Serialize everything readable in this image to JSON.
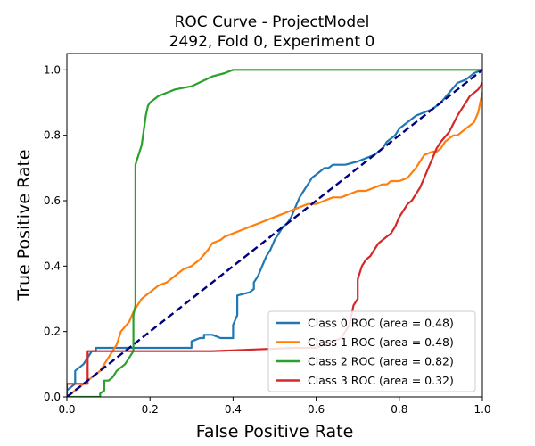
{
  "chart_data": {
    "type": "line",
    "title": [
      "ROC Curve - ProjectModel",
      "2492, Fold 0, Experiment 0"
    ],
    "xlabel": "False Positive Rate",
    "ylabel": "True Positive Rate",
    "xlim": [
      0.0,
      1.0
    ],
    "ylim": [
      0.0,
      1.05
    ],
    "xticks": [
      "0.0",
      "0.2",
      "0.4",
      "0.6",
      "0.8",
      "1.0"
    ],
    "yticks": [
      "0.0",
      "0.2",
      "0.4",
      "0.6",
      "0.8",
      "1.0"
    ],
    "grid": false,
    "legend_position": "lower-right",
    "series": [
      {
        "name": "Class 0 ROC (area = 0.48)",
        "color": "#1f77b4",
        "x": [
          0.0,
          0.0,
          0.02,
          0.02,
          0.04,
          0.05,
          0.06,
          0.07,
          0.07,
          0.3,
          0.3,
          0.32,
          0.33,
          0.33,
          0.35,
          0.37,
          0.4,
          0.4,
          0.41,
          0.41,
          0.44,
          0.45,
          0.45,
          0.46,
          0.47,
          0.48,
          0.49,
          0.5,
          0.51,
          0.52,
          0.53,
          0.54,
          0.55,
          0.56,
          0.57,
          0.58,
          0.59,
          0.6,
          0.61,
          0.62,
          0.63,
          0.64,
          0.65,
          0.66,
          0.67,
          0.7,
          0.72,
          0.74,
          0.76,
          0.77,
          0.79,
          0.8,
          0.82,
          0.84,
          0.86,
          0.88,
          0.9,
          0.92,
          0.94,
          0.96,
          0.97,
          0.98,
          1.0
        ],
        "y": [
          0.0,
          0.02,
          0.04,
          0.08,
          0.1,
          0.12,
          0.14,
          0.14,
          0.15,
          0.15,
          0.17,
          0.18,
          0.18,
          0.19,
          0.19,
          0.18,
          0.18,
          0.22,
          0.25,
          0.31,
          0.32,
          0.33,
          0.35,
          0.37,
          0.4,
          0.43,
          0.45,
          0.48,
          0.5,
          0.52,
          0.53,
          0.55,
          0.58,
          0.61,
          0.63,
          0.65,
          0.67,
          0.68,
          0.69,
          0.7,
          0.7,
          0.71,
          0.71,
          0.71,
          0.71,
          0.72,
          0.73,
          0.74,
          0.76,
          0.78,
          0.8,
          0.82,
          0.84,
          0.86,
          0.87,
          0.88,
          0.9,
          0.93,
          0.96,
          0.97,
          0.98,
          0.99,
          1.0
        ]
      },
      {
        "name": "Class 1 ROC (area = 0.48)",
        "color": "#ff7f0e",
        "x": [
          0.0,
          0.02,
          0.05,
          0.08,
          0.1,
          0.12,
          0.13,
          0.15,
          0.16,
          0.17,
          0.18,
          0.19,
          0.2,
          0.22,
          0.24,
          0.26,
          0.28,
          0.3,
          0.32,
          0.34,
          0.35,
          0.37,
          0.38,
          0.4,
          0.42,
          0.44,
          0.46,
          0.48,
          0.5,
          0.52,
          0.54,
          0.56,
          0.58,
          0.6,
          0.62,
          0.64,
          0.66,
          0.68,
          0.7,
          0.72,
          0.74,
          0.76,
          0.77,
          0.78,
          0.8,
          0.82,
          0.84,
          0.85,
          0.86,
          0.88,
          0.89,
          0.9,
          0.91,
          0.92,
          0.93,
          0.94,
          0.95,
          0.96,
          0.97,
          0.98,
          0.99,
          1.0
        ],
        "y": [
          0.0,
          0.02,
          0.05,
          0.08,
          0.12,
          0.16,
          0.2,
          0.23,
          0.26,
          0.28,
          0.3,
          0.31,
          0.32,
          0.34,
          0.35,
          0.37,
          0.39,
          0.4,
          0.42,
          0.45,
          0.47,
          0.48,
          0.49,
          0.5,
          0.51,
          0.52,
          0.53,
          0.54,
          0.55,
          0.56,
          0.57,
          0.58,
          0.59,
          0.59,
          0.6,
          0.61,
          0.61,
          0.62,
          0.63,
          0.63,
          0.64,
          0.65,
          0.65,
          0.66,
          0.66,
          0.67,
          0.7,
          0.72,
          0.74,
          0.75,
          0.75,
          0.76,
          0.78,
          0.79,
          0.8,
          0.8,
          0.81,
          0.82,
          0.83,
          0.84,
          0.87,
          0.93
        ]
      },
      {
        "name": "Class 2 ROC (area = 0.82)",
        "color": "#2ca02c",
        "x": [
          0.0,
          0.06,
          0.08,
          0.08,
          0.09,
          0.09,
          0.1,
          0.11,
          0.12,
          0.14,
          0.16,
          0.16,
          0.165,
          0.165,
          0.17,
          0.18,
          0.19,
          0.195,
          0.2,
          0.22,
          0.24,
          0.26,
          0.3,
          0.35,
          0.38,
          0.4,
          1.0
        ],
        "y": [
          0.0,
          0.0,
          0.0,
          0.01,
          0.02,
          0.05,
          0.05,
          0.06,
          0.08,
          0.1,
          0.14,
          0.25,
          0.28,
          0.71,
          0.73,
          0.77,
          0.86,
          0.89,
          0.9,
          0.92,
          0.93,
          0.94,
          0.95,
          0.98,
          0.99,
          1.0,
          1.0
        ]
      },
      {
        "name": "Class 3 ROC (area = 0.32)",
        "color": "#d62728",
        "x": [
          0.0,
          0.0,
          0.05,
          0.05,
          0.15,
          0.15,
          0.35,
          0.45,
          0.55,
          0.6,
          0.62,
          0.64,
          0.66,
          0.67,
          0.68,
          0.69,
          0.7,
          0.7,
          0.71,
          0.72,
          0.73,
          0.74,
          0.75,
          0.76,
          0.77,
          0.78,
          0.79,
          0.8,
          0.81,
          0.82,
          0.83,
          0.84,
          0.85,
          0.86,
          0.87,
          0.88,
          0.89,
          0.9,
          0.92,
          0.94,
          0.95,
          0.96,
          0.97,
          0.98,
          0.99,
          1.0
        ],
        "y": [
          0.0,
          0.04,
          0.04,
          0.14,
          0.14,
          0.14,
          0.14,
          0.145,
          0.15,
          0.15,
          0.16,
          0.17,
          0.18,
          0.2,
          0.22,
          0.28,
          0.3,
          0.36,
          0.4,
          0.42,
          0.43,
          0.45,
          0.47,
          0.48,
          0.49,
          0.5,
          0.52,
          0.55,
          0.57,
          0.59,
          0.6,
          0.62,
          0.64,
          0.67,
          0.7,
          0.73,
          0.76,
          0.78,
          0.81,
          0.86,
          0.88,
          0.9,
          0.92,
          0.93,
          0.94,
          0.96
        ]
      }
    ],
    "reference_line": {
      "x": [
        0.0,
        1.0
      ],
      "y": [
        0.0,
        1.0
      ],
      "color": "#000080",
      "style": "dashed"
    }
  }
}
